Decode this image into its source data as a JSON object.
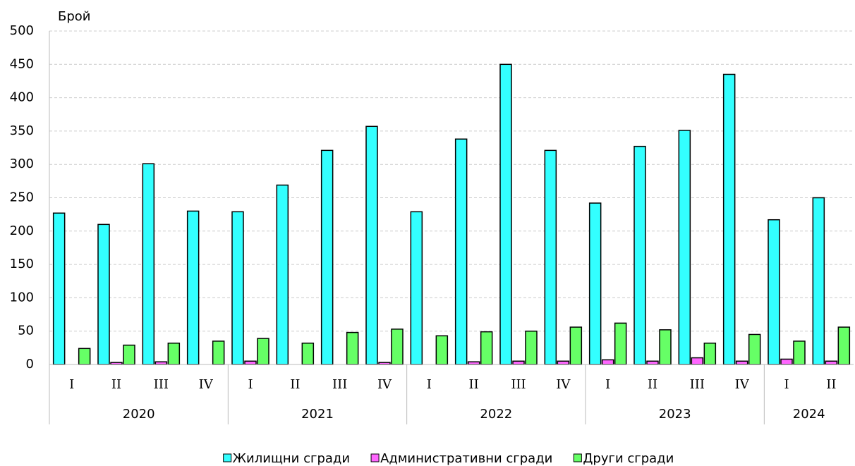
{
  "chart_data": {
    "type": "bar",
    "y_axis_label": "Брой",
    "groups": [
      {
        "name": "2020",
        "categories": [
          "I",
          "II",
          "III",
          "IV"
        ]
      },
      {
        "name": "2021",
        "categories": [
          "I",
          "II",
          "III",
          "IV"
        ]
      },
      {
        "name": "2022",
        "categories": [
          "I",
          "II",
          "III",
          "IV"
        ]
      },
      {
        "name": "2023",
        "categories": [
          "I",
          "II",
          "III",
          "IV"
        ]
      },
      {
        "name": "2024",
        "categories": [
          "I",
          "II"
        ]
      }
    ],
    "series": [
      {
        "name": "Жилищни сгради",
        "color": "#33ffff",
        "values": [
          227,
          210,
          301,
          230,
          229,
          269,
          321,
          357,
          229,
          338,
          450,
          321,
          242,
          327,
          351,
          435,
          217,
          250
        ]
      },
      {
        "name": "Административни сгради",
        "color": "#ff66ff",
        "values": [
          0,
          3,
          4,
          0,
          5,
          0,
          0,
          3,
          0,
          4,
          5,
          5,
          7,
          5,
          10,
          5,
          8,
          5
        ]
      },
      {
        "name": "Други сгради",
        "color": "#66ff66",
        "values": [
          24,
          29,
          32,
          35,
          39,
          32,
          48,
          53,
          43,
          49,
          50,
          56,
          62,
          52,
          32,
          45,
          35,
          56
        ]
      }
    ],
    "ylim": [
      0,
      500
    ],
    "yticks": [
      0,
      50,
      100,
      150,
      200,
      250,
      300,
      350,
      400,
      450,
      500
    ],
    "grid": true,
    "legend": "bottom"
  }
}
